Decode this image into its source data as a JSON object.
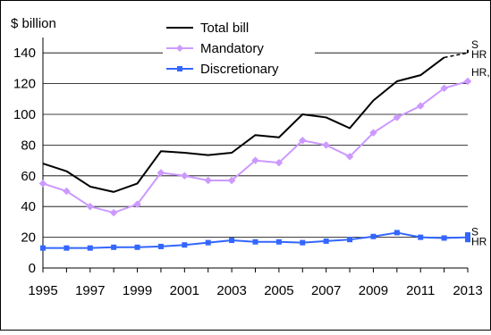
{
  "chart_data": {
    "type": "line",
    "ylabel": "$ billion",
    "ylim": [
      0,
      150
    ],
    "yticks": [
      0,
      20,
      40,
      60,
      80,
      100,
      120,
      140
    ],
    "xlim": [
      1995,
      2013
    ],
    "xticks": [
      1995,
      1997,
      1999,
      2001,
      2003,
      2005,
      2007,
      2009,
      2011,
      2013
    ],
    "grid": "horizontal",
    "legend_position": "top-center",
    "series": [
      {
        "name": "Total bill",
        "color": "#000000",
        "marker": "none",
        "x": [
          1995,
          1996,
          1997,
          1998,
          1999,
          2000,
          2001,
          2002,
          2003,
          2004,
          2005,
          2006,
          2007,
          2008,
          2009,
          2010,
          2011,
          2012
        ],
        "values": [
          68,
          63,
          53,
          49.5,
          55,
          76,
          75,
          73.5,
          75,
          86.5,
          85,
          100,
          98,
          91,
          109,
          121.5,
          125.5,
          137
        ],
        "proposal_x": [
          2012,
          2013
        ],
        "proposal_values": [
          137,
          140
        ],
        "proposal_end_value": 142
      },
      {
        "name": "Mandatory",
        "color": "#cc99ff",
        "marker": "diamond",
        "x": [
          1995,
          1996,
          1997,
          1998,
          1999,
          2000,
          2001,
          2002,
          2003,
          2004,
          2005,
          2006,
          2007,
          2008,
          2009,
          2010,
          2011,
          2012,
          2013
        ],
        "values": [
          55,
          50,
          40,
          36,
          41.5,
          62,
          60,
          57,
          57,
          70,
          68.5,
          83,
          80,
          72.5,
          88,
          98,
          105.5,
          117,
          121.5
        ]
      },
      {
        "name": "Discretionary",
        "color": "#3366ff",
        "marker": "square",
        "x": [
          1995,
          1996,
          1997,
          1998,
          1999,
          2000,
          2001,
          2002,
          2003,
          2004,
          2005,
          2006,
          2007,
          2008,
          2009,
          2010,
          2011,
          2012,
          2013
        ],
        "values": [
          13,
          13,
          13,
          13.5,
          13.5,
          14,
          15,
          16.5,
          18,
          17,
          17,
          16.5,
          17.5,
          18.5,
          20.5,
          23,
          20,
          19.5,
          20
        ],
        "proposal_end_values": [
          21.5,
          18.5
        ]
      }
    ],
    "annotations": [
      {
        "name": "total-s-hr",
        "main": "S",
        "sub": "HR",
        "x": 2013,
        "y": 142
      },
      {
        "name": "mandatory-hr-s",
        "main": "HR,S",
        "sub": "",
        "x": 2013,
        "y": 121.5
      },
      {
        "name": "discretionary-s-hr",
        "main": "S",
        "sub": "HR",
        "x": 2013,
        "y": 20
      }
    ]
  }
}
